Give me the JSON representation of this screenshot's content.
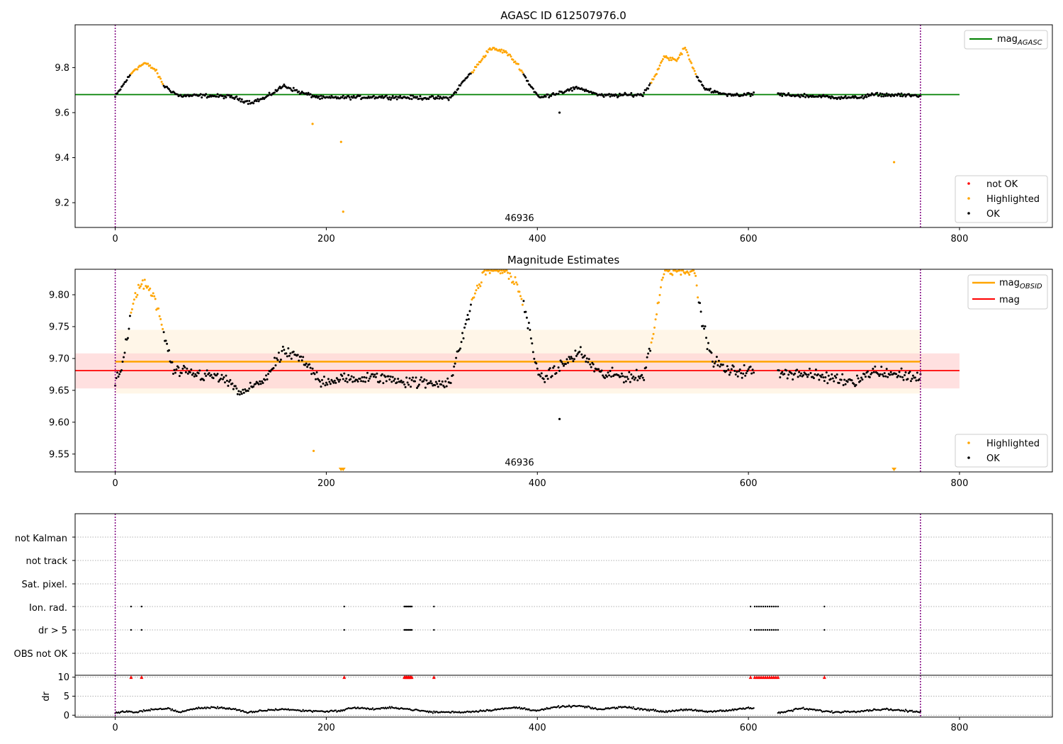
{
  "colors": {
    "ok": "#000000",
    "highlighted": "#FFA500",
    "not_ok": "#FF0000",
    "mag_agasc": "#008000",
    "mag_obsid": "#FFA500",
    "mag": "#FF0000",
    "obsid_band": "#FFF3E0",
    "mag_band": "#FFD6D6",
    "obs_line": "#800080"
  },
  "chart_data": [
    {
      "type": "scatter",
      "title": "AGASC ID 612507976.0",
      "xlabel": "",
      "ylabel": "",
      "xlim": [
        -38,
        888
      ],
      "ylim": [
        9.09,
        9.99
      ],
      "xticks": [
        0,
        200,
        400,
        600,
        800
      ],
      "yticks": [
        9.2,
        9.4,
        9.6,
        9.8
      ],
      "ytick_labels": [
        "9.2",
        "9.4",
        "9.6",
        "9.8"
      ],
      "obs_boundaries": [
        0,
        763
      ],
      "obs_label": {
        "text": "46936",
        "x": 380
      },
      "hlines": [
        {
          "name": "mag_AGASC",
          "y": 9.68,
          "x0": -38,
          "x1": 800,
          "color_key": "mag_agasc"
        }
      ],
      "baseline": {
        "x0": 0,
        "x1": 763,
        "gap": [
          605,
          628
        ],
        "dropped": [
          419
        ],
        "anchors": [
          [
            0,
            9.67
          ],
          [
            10,
            9.74
          ],
          [
            18,
            9.79
          ],
          [
            28,
            9.82
          ],
          [
            38,
            9.79
          ],
          [
            46,
            9.72
          ],
          [
            60,
            9.675
          ],
          [
            90,
            9.675
          ],
          [
            110,
            9.67
          ],
          [
            128,
            9.645
          ],
          [
            142,
            9.665
          ],
          [
            160,
            9.72
          ],
          [
            175,
            9.69
          ],
          [
            195,
            9.665
          ],
          [
            250,
            9.67
          ],
          [
            300,
            9.665
          ],
          [
            318,
            9.665
          ],
          [
            330,
            9.74
          ],
          [
            340,
            9.79
          ],
          [
            355,
            9.885
          ],
          [
            370,
            9.87
          ],
          [
            382,
            9.81
          ],
          [
            392,
            9.73
          ],
          [
            402,
            9.665
          ],
          [
            420,
            9.69
          ],
          [
            440,
            9.71
          ],
          [
            460,
            9.675
          ],
          [
            500,
            9.68
          ],
          [
            510,
            9.75
          ],
          [
            520,
            9.85
          ],
          [
            532,
            9.83
          ],
          [
            540,
            9.89
          ],
          [
            550,
            9.77
          ],
          [
            560,
            9.7
          ],
          [
            580,
            9.68
          ],
          [
            628,
            9.68
          ],
          [
            700,
            9.665
          ],
          [
            720,
            9.68
          ],
          [
            763,
            9.675
          ]
        ],
        "highlight": [
          [
            15,
            45
          ],
          [
            338,
            386
          ],
          [
            508,
            550
          ]
        ],
        "jitter": 0.012
      },
      "points": [
        {
          "x": 187,
          "y": 9.55,
          "cls": "highlighted"
        },
        {
          "x": 214,
          "y": 9.47,
          "cls": "highlighted"
        },
        {
          "x": 216,
          "y": 9.16,
          "cls": "highlighted"
        },
        {
          "x": 738,
          "y": 9.38,
          "cls": "highlighted"
        },
        {
          "x": 421,
          "y": 9.6,
          "cls": "ok"
        }
      ],
      "legend_lines": [
        {
          "label": "mag",
          "sub": "AGASC",
          "color_key": "mag_agasc"
        }
      ],
      "legend_markers": [
        {
          "label": "not OK",
          "color_key": "not_ok"
        },
        {
          "label": "Highlighted",
          "color_key": "highlighted"
        },
        {
          "label": "OK",
          "color_key": "ok"
        }
      ]
    },
    {
      "type": "scatter",
      "title": "Magnitude Estimates",
      "xlabel": "",
      "ylabel": "",
      "xlim": [
        -38,
        888
      ],
      "ylim": [
        9.522,
        9.84
      ],
      "xticks": [
        0,
        200,
        400,
        600,
        800
      ],
      "yticks": [
        9.55,
        9.6,
        9.65,
        9.7,
        9.75,
        9.8
      ],
      "ytick_labels": [
        "9.55",
        "9.60",
        "9.65",
        "9.70",
        "9.75",
        "9.80"
      ],
      "obs_boundaries": [
        0,
        763
      ],
      "obs_label": {
        "text": "46936",
        "x": 380
      },
      "bands": [
        {
          "y0": 9.645,
          "y1": 9.745,
          "x0": 0,
          "x1": 763,
          "color_key": "obsid_band"
        },
        {
          "y0": 9.653,
          "y1": 9.708,
          "x0": -38,
          "x1": 800,
          "color_key": "mag_band"
        }
      ],
      "hlines": [
        {
          "name": "mag_OBSID",
          "y": 9.695,
          "x0": 0,
          "x1": 763,
          "color_key": "mag_obsid"
        },
        {
          "name": "mag",
          "y": 9.681,
          "x0": -38,
          "x1": 800,
          "color_key": "mag"
        }
      ],
      "baseline": {
        "x0": 0,
        "x1": 763,
        "gap": [
          605,
          628
        ],
        "dropped": [
          419
        ],
        "anchors": [
          [
            0,
            9.66
          ],
          [
            8,
            9.7
          ],
          [
            15,
            9.77
          ],
          [
            22,
            9.81
          ],
          [
            28,
            9.82
          ],
          [
            38,
            9.79
          ],
          [
            46,
            9.74
          ],
          [
            55,
            9.68
          ],
          [
            100,
            9.67
          ],
          [
            120,
            9.645
          ],
          [
            140,
            9.665
          ],
          [
            160,
            9.71
          ],
          [
            175,
            9.7
          ],
          [
            195,
            9.665
          ],
          [
            250,
            9.67
          ],
          [
            300,
            9.66
          ],
          [
            318,
            9.665
          ],
          [
            330,
            9.74
          ],
          [
            340,
            9.8
          ],
          [
            352,
            9.84
          ],
          [
            370,
            9.84
          ],
          [
            382,
            9.81
          ],
          [
            392,
            9.75
          ],
          [
            402,
            9.665
          ],
          [
            420,
            9.685
          ],
          [
            440,
            9.71
          ],
          [
            460,
            9.675
          ],
          [
            500,
            9.67
          ],
          [
            510,
            9.74
          ],
          [
            520,
            9.84
          ],
          [
            548,
            9.84
          ],
          [
            556,
            9.76
          ],
          [
            565,
            9.7
          ],
          [
            580,
            9.68
          ],
          [
            628,
            9.68
          ],
          [
            700,
            9.665
          ],
          [
            720,
            9.68
          ],
          [
            763,
            9.67
          ]
        ],
        "highlight": [
          [
            15,
            45
          ],
          [
            338,
            386
          ],
          [
            508,
            552
          ]
        ],
        "jitter": 0.014
      },
      "points": [
        {
          "x": 188,
          "y": 9.555,
          "cls": "highlighted"
        },
        {
          "x": 421,
          "y": 9.605,
          "cls": "ok"
        }
      ],
      "clipped_markers": [
        214,
        216,
        738
      ],
      "legend_lines": [
        {
          "label": "mag",
          "sub": "OBSID",
          "color_key": "mag_obsid"
        },
        {
          "label": "mag",
          "sub": "",
          "color_key": "mag"
        }
      ],
      "legend_markers": [
        {
          "label": "Highlighted",
          "color_key": "highlighted"
        },
        {
          "label": "OK",
          "color_key": "ok"
        }
      ]
    },
    {
      "type": "scatter",
      "title": "",
      "xlabel": "",
      "ylabel": "",
      "xlim": [
        -38,
        888
      ],
      "obs_boundaries": [
        0,
        763
      ],
      "flag_rows": [
        {
          "label": "not Kalman",
          "x": []
        },
        {
          "label": "not track",
          "x": []
        },
        {
          "label": "Sat. pixel.",
          "x": []
        },
        {
          "label": "Ion. rad.",
          "x": [
            15,
            25,
            217,
            274,
            275,
            276,
            277,
            278,
            279,
            280,
            281,
            302,
            602,
            606,
            608,
            610,
            612,
            614,
            616,
            618,
            620,
            622,
            624,
            626,
            628,
            672
          ]
        },
        {
          "label": "dr > 5",
          "x": [
            15,
            25,
            217,
            274,
            275,
            276,
            277,
            278,
            279,
            280,
            281,
            302,
            602,
            606,
            608,
            610,
            612,
            614,
            616,
            618,
            620,
            622,
            624,
            626,
            628,
            672
          ]
        },
        {
          "label": "OBS not OK",
          "x": []
        }
      ]
    },
    {
      "type": "scatter",
      "title": "",
      "xlabel": "",
      "ylabel": "dr",
      "xlim": [
        -38,
        888
      ],
      "ylim": [
        -0.5,
        10.5
      ],
      "xticks": [
        0,
        200,
        400,
        600,
        800
      ],
      "yticks": [
        0,
        5,
        10
      ],
      "ytick_labels": [
        "0",
        "5",
        "10"
      ],
      "obs_boundaries": [
        0,
        763
      ],
      "dr_series": {
        "x0": 0,
        "x1": 763,
        "gap": [
          605,
          628
        ],
        "anchors": [
          [
            0,
            0.5
          ],
          [
            10,
            1.0
          ],
          [
            20,
            0.7
          ],
          [
            30,
            1.3
          ],
          [
            50,
            1.8
          ],
          [
            60,
            0.8
          ],
          [
            80,
            1.9
          ],
          [
            100,
            2.0
          ],
          [
            115,
            1.5
          ],
          [
            125,
            0.6
          ],
          [
            140,
            1.2
          ],
          [
            160,
            1.6
          ],
          [
            175,
            1.2
          ],
          [
            200,
            1.0
          ],
          [
            215,
            1.2
          ],
          [
            225,
            2.0
          ],
          [
            245,
            1.6
          ],
          [
            265,
            2.0
          ],
          [
            280,
            1.5
          ],
          [
            300,
            0.8
          ],
          [
            330,
            0.8
          ],
          [
            350,
            1.2
          ],
          [
            380,
            2.0
          ],
          [
            400,
            1.2
          ],
          [
            420,
            2.2
          ],
          [
            440,
            2.4
          ],
          [
            460,
            1.5
          ],
          [
            480,
            2.2
          ],
          [
            500,
            1.6
          ],
          [
            520,
            0.9
          ],
          [
            540,
            1.5
          ],
          [
            560,
            0.9
          ],
          [
            580,
            1.2
          ],
          [
            600,
            2.0
          ],
          [
            630,
            0.6
          ],
          [
            650,
            1.8
          ],
          [
            680,
            0.8
          ],
          [
            700,
            1.0
          ],
          [
            730,
            1.6
          ],
          [
            763,
            0.8
          ]
        ]
      },
      "saturated_markers": [
        15,
        25,
        217,
        274,
        275,
        276,
        277,
        278,
        279,
        280,
        281,
        302,
        602,
        606,
        608,
        610,
        612,
        614,
        616,
        618,
        620,
        622,
        624,
        626,
        628,
        672
      ]
    }
  ]
}
